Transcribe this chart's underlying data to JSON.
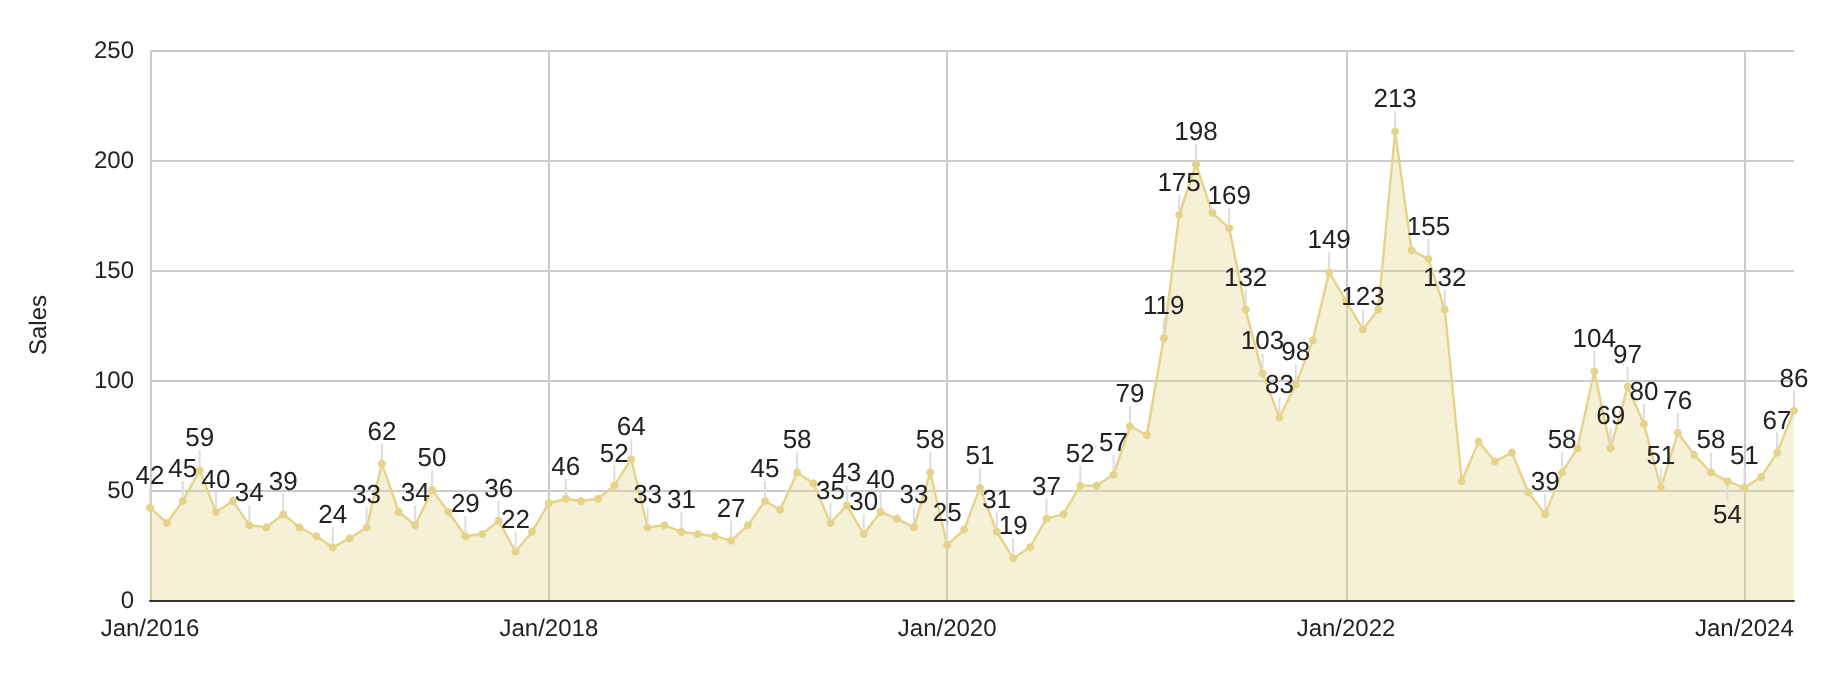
{
  "chart_data": {
    "type": "area",
    "ylabel": "Sales",
    "color": "#e6d38a",
    "marker": "circle",
    "grid": true,
    "x": [
      "2016-01",
      "2016-02",
      "2016-03",
      "2016-04",
      "2016-05",
      "2016-06",
      "2016-07",
      "2016-08",
      "2016-09",
      "2016-10",
      "2016-11",
      "2016-12",
      "2017-01",
      "2017-02",
      "2017-03",
      "2017-04",
      "2017-05",
      "2017-06",
      "2017-07",
      "2017-08",
      "2017-09",
      "2017-10",
      "2017-11",
      "2017-12",
      "2018-01",
      "2018-02",
      "2018-03",
      "2018-04",
      "2018-05",
      "2018-06",
      "2018-07",
      "2018-08",
      "2018-09",
      "2018-10",
      "2018-11",
      "2018-12",
      "2019-01",
      "2019-02",
      "2019-03",
      "2019-04",
      "2019-05",
      "2019-06",
      "2019-07",
      "2019-08",
      "2019-09",
      "2019-10",
      "2019-11",
      "2019-12",
      "2020-01",
      "2020-02",
      "2020-03",
      "2020-04",
      "2020-05",
      "2020-06",
      "2020-07",
      "2020-08",
      "2020-09",
      "2020-10",
      "2020-11",
      "2020-12",
      "2021-01",
      "2021-02",
      "2021-03",
      "2021-04",
      "2021-05",
      "2021-06",
      "2021-07",
      "2021-08",
      "2021-09",
      "2021-10",
      "2021-11",
      "2021-12",
      "2022-01",
      "2022-02",
      "2022-03",
      "2022-04",
      "2022-05",
      "2022-06",
      "2022-07",
      "2022-08",
      "2022-09",
      "2022-10",
      "2022-11",
      "2022-12",
      "2023-01",
      "2023-02",
      "2023-03",
      "2023-04",
      "2023-05",
      "2023-06",
      "2023-07",
      "2023-08",
      "2023-09",
      "2023-10",
      "2023-11",
      "2023-12",
      "2024-01",
      "2024-02",
      "2024-03",
      "2024-04"
    ],
    "values": [
      42,
      35,
      45,
      59,
      40,
      45,
      34,
      33,
      39,
      33,
      29,
      24,
      28,
      33,
      62,
      40,
      34,
      50,
      40,
      29,
      30,
      36,
      22,
      31,
      44,
      46,
      45,
      46,
      52,
      64,
      33,
      34,
      31,
      30,
      29,
      27,
      34,
      45,
      41,
      58,
      53,
      35,
      43,
      30,
      40,
      37,
      33,
      58,
      25,
      32,
      51,
      31,
      19,
      24,
      37,
      39,
      52,
      52,
      57,
      79,
      75,
      119,
      175,
      198,
      176,
      169,
      132,
      103,
      83,
      98,
      118,
      149,
      136,
      123,
      132,
      213,
      159,
      155,
      132,
      54,
      72,
      63,
      67,
      49,
      39,
      58,
      69,
      104,
      69,
      97,
      80,
      51,
      76,
      66,
      58,
      54,
      51,
      56,
      67,
      86
    ],
    "value_labels": [
      "42",
      null,
      "45",
      "59",
      "40",
      null,
      "34",
      null,
      "39",
      null,
      null,
      "24",
      null,
      "33",
      "62",
      null,
      "34",
      "50",
      null,
      "29",
      null,
      "36",
      "22",
      null,
      null,
      "46",
      null,
      null,
      "52",
      "64",
      "33",
      null,
      "31",
      null,
      null,
      "27",
      null,
      "45",
      null,
      "58",
      null,
      "35",
      "43",
      "30",
      "40",
      null,
      "33",
      "58",
      "25",
      null,
      "51",
      "31",
      "19",
      null,
      "37",
      null,
      "52",
      null,
      "57",
      "79",
      null,
      "119",
      "175",
      "198",
      null,
      "169",
      "132",
      "103",
      "83",
      "98",
      null,
      "149",
      null,
      "123",
      null,
      "213",
      null,
      "155",
      "132",
      null,
      null,
      null,
      null,
      null,
      "39",
      "58",
      null,
      "104",
      "69",
      "97",
      "80",
      "51",
      "76",
      null,
      "58",
      "54",
      "51",
      null,
      "67",
      "86"
    ],
    "xlim": [
      "2016-01",
      "2024-04"
    ],
    "xticks": [
      {
        "value": "2016-01",
        "label": "Jan/2016"
      },
      {
        "value": "2018-01",
        "label": "Jan/2018"
      },
      {
        "value": "2020-01",
        "label": "Jan/2020"
      },
      {
        "value": "2022-01",
        "label": "Jan/2022"
      },
      {
        "value": "2024-01",
        "label": "Jan/2024"
      }
    ],
    "ylim": [
      0,
      250
    ],
    "yticks": [
      0,
      50,
      100,
      150,
      200,
      250
    ]
  }
}
